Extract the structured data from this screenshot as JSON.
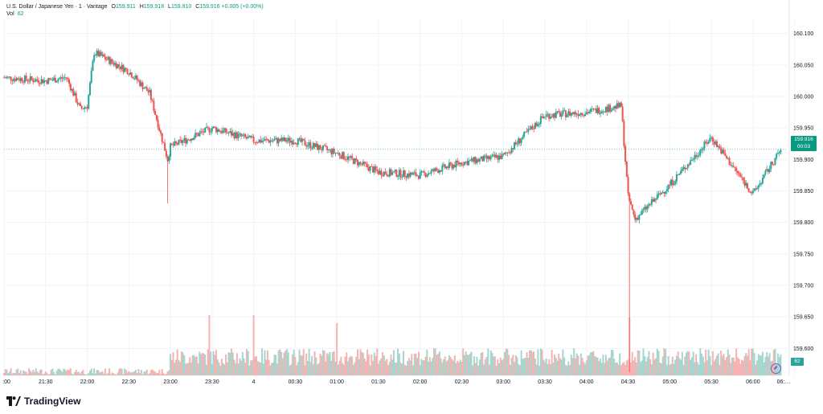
{
  "legend": {
    "symbol": "U.S. Dollar / Japanese Yen · 1 · Vantage",
    "o_label": "O",
    "o_value": "159.911",
    "h_label": "H",
    "h_value": "159.918",
    "l_label": "L",
    "l_value": "159.910",
    "c_label": "C",
    "c_value": "159.916",
    "change": "+0.005 (+0.00%)"
  },
  "volume": {
    "label": "Vol",
    "value": "62"
  },
  "price_tag": {
    "price": "159.916",
    "countdown": "00:03"
  },
  "vol_tag": "62",
  "brand": "TradingView",
  "colors": {
    "up": "#26a69a",
    "down": "#ef5350",
    "up_vol": "#a5d6cf",
    "down_vol": "#f5b3b1",
    "grid": "#f0f3fa",
    "text": "#131722"
  },
  "chart_data": {
    "type": "candlestick",
    "title": "U.S. Dollar / Japanese Yen · 1 · Vantage",
    "price_axis": {
      "ticks": [
        "160.100",
        "160.050",
        "160.000",
        "159.950",
        "159.900",
        "159.850",
        "159.800",
        "159.750",
        "159.700",
        "159.650",
        "159.600"
      ],
      "range": [
        159.557,
        160.12
      ]
    },
    "time_axis": {
      "ticks": [
        ":00",
        "21:30",
        "22:00",
        "22:30",
        "23:00",
        "23:30",
        "4",
        "00:30",
        "01:00",
        "01:30",
        "02:00",
        "02:30",
        "03:00",
        "03:30",
        "04:00",
        "04:30",
        "05:00",
        "05:30",
        "06:00",
        "06:…"
      ]
    },
    "grid": true,
    "last_price": 159.916,
    "series_path_approx": [
      {
        "t": "21:00",
        "p": 160.03
      },
      {
        "t": "21:30",
        "p": 160.025
      },
      {
        "t": "21:45",
        "p": 160.03
      },
      {
        "t": "21:55",
        "p": 159.98
      },
      {
        "t": "22:00",
        "p": 159.985
      },
      {
        "t": "22:05",
        "p": 160.07
      },
      {
        "t": "22:30",
        "p": 160.04
      },
      {
        "t": "22:45",
        "p": 160.005
      },
      {
        "t": "22:58",
        "p": 159.9
      },
      {
        "t": "23:00",
        "p": 159.92
      },
      {
        "t": "23:30",
        "p": 159.95
      },
      {
        "t": "00:00",
        "p": 159.93
      },
      {
        "t": "00:30",
        "p": 159.93
      },
      {
        "t": "01:00",
        "p": 159.91
      },
      {
        "t": "01:30",
        "p": 159.88
      },
      {
        "t": "02:00",
        "p": 159.875
      },
      {
        "t": "02:30",
        "p": 159.895
      },
      {
        "t": "03:00",
        "p": 159.905
      },
      {
        "t": "03:30",
        "p": 159.97
      },
      {
        "t": "04:00",
        "p": 159.975
      },
      {
        "t": "04:25",
        "p": 159.985
      },
      {
        "t": "04:30",
        "p": 159.84
      },
      {
        "t": "04:35",
        "p": 159.805
      },
      {
        "t": "05:00",
        "p": 159.86
      },
      {
        "t": "05:30",
        "p": 159.935
      },
      {
        "t": "05:45",
        "p": 159.89
      },
      {
        "t": "06:00",
        "p": 159.845
      },
      {
        "t": "06:20",
        "p": 159.915
      }
    ]
  }
}
